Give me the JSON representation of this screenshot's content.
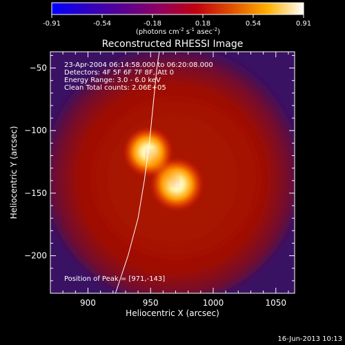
{
  "colorbar": {
    "ticks": [
      "-0.91",
      "-0.54",
      "-0.18",
      "0.18",
      "0.54",
      "0.91"
    ],
    "unit_label_main": "(photons cm",
    "unit_sup1": "-2",
    "unit_mid": " s",
    "unit_sup2": "-1",
    "unit_mid2": " asec",
    "unit_sup3": "-2",
    "unit_close": ")",
    "colors": [
      "#0000ff",
      "#3000c0",
      "#5a0090",
      "#900060",
      "#c00010",
      "#e05000",
      "#ffb000",
      "#ffffff"
    ]
  },
  "chart_data": {
    "type": "heatmap",
    "title": "Reconstructed RHESSI Image",
    "xlabel": "Heliocentric X (arcsec)",
    "ylabel": "Heliocentric Y (arcsec)",
    "xlim": [
      870,
      1065
    ],
    "ylim": [
      -230,
      -37
    ],
    "x_ticks": [
      900,
      950,
      1000,
      1050
    ],
    "y_ticks": [
      -50,
      -100,
      -150,
      -200
    ],
    "x_tick_labels": [
      "900",
      "950",
      "1000",
      "1050"
    ],
    "y_tick_labels": [
      "−50",
      "−100",
      "−150",
      "−200"
    ],
    "annotations": [
      "23-Apr-2004 06:14:58.000 to 06:20:08.000",
      "Detectors: 4F 5F 6F 7F 8F, Att 0",
      "Energy Range: 3.0 - 6.0 keV",
      "Clean    Total counts: 2.06E+05"
    ],
    "peak_label": "Position of Peak = [971,-143]",
    "sources": [
      {
        "x": 971,
        "y": -143,
        "intensity": 0.91
      },
      {
        "x": 948,
        "y": -117,
        "intensity": 0.78
      }
    ],
    "limb_curve": [
      [
        922,
        -230
      ],
      [
        932,
        -200
      ],
      [
        940,
        -170
      ],
      [
        945,
        -140
      ],
      [
        949,
        -110
      ],
      [
        952,
        -80
      ],
      [
        955,
        -50
      ],
      [
        957,
        -37
      ]
    ]
  },
  "footer": {
    "date": "16-Jun-2013 10:13"
  }
}
